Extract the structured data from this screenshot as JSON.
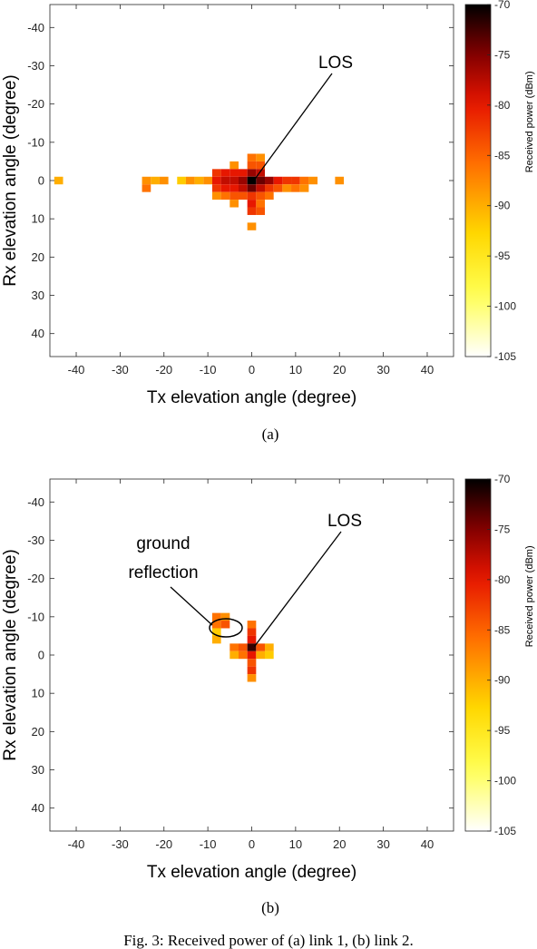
{
  "chart_data": [
    {
      "type": "heatmap",
      "subcaption": "(a)",
      "xlabel": "Tx elevation angle (degree)",
      "ylabel": "Rx elevation angle (degree)",
      "xlim": [
        -46,
        46
      ],
      "ylim": [
        -46,
        46
      ],
      "xticks": [
        -40,
        -30,
        -20,
        -10,
        0,
        10,
        20,
        30,
        40
      ],
      "yticks": [
        -40,
        -30,
        -20,
        -10,
        0,
        10,
        20,
        30,
        40
      ],
      "colorbar": {
        "label": "Received power (dBm)",
        "range": [
          -105,
          -70
        ],
        "ticks": [
          -70,
          -75,
          -80,
          -85,
          -90,
          -95,
          -100,
          -105
        ]
      },
      "cell_size_deg": 2,
      "annotations": [
        {
          "text": "LOS",
          "target": [
            0,
            0
          ]
        }
      ],
      "cells": [
        [
          -44,
          0,
          -90
        ],
        [
          -24,
          0,
          -88
        ],
        [
          -24,
          2,
          -86
        ],
        [
          -22,
          0,
          -90
        ],
        [
          -20,
          0,
          -88
        ],
        [
          -16,
          0,
          -92
        ],
        [
          -14,
          0,
          -88
        ],
        [
          -12,
          0,
          -90
        ],
        [
          -10,
          0,
          -88
        ],
        [
          -8,
          -2,
          -82
        ],
        [
          -8,
          0,
          -80
        ],
        [
          -8,
          2,
          -82
        ],
        [
          -8,
          4,
          -88
        ],
        [
          -6,
          -2,
          -80
        ],
        [
          -6,
          0,
          -78
        ],
        [
          -6,
          2,
          -80
        ],
        [
          -6,
          4,
          -86
        ],
        [
          -4,
          -4,
          -88
        ],
        [
          -4,
          -2,
          -80
        ],
        [
          -4,
          0,
          -78
        ],
        [
          -4,
          2,
          -80
        ],
        [
          -4,
          4,
          -84
        ],
        [
          -4,
          6,
          -88
        ],
        [
          -2,
          -2,
          -80
        ],
        [
          -2,
          0,
          -76
        ],
        [
          -2,
          2,
          -78
        ],
        [
          -2,
          4,
          -84
        ],
        [
          0,
          -6,
          -86
        ],
        [
          0,
          -4,
          -84
        ],
        [
          0,
          -2,
          -76
        ],
        [
          0,
          0,
          -70
        ],
        [
          0,
          2,
          -74
        ],
        [
          0,
          4,
          -82
        ],
        [
          0,
          6,
          -80
        ],
        [
          0,
          8,
          -82
        ],
        [
          0,
          12,
          -88
        ],
        [
          2,
          -6,
          -88
        ],
        [
          2,
          -4,
          -84
        ],
        [
          2,
          -2,
          -78
        ],
        [
          2,
          0,
          -74
        ],
        [
          2,
          2,
          -78
        ],
        [
          2,
          4,
          -84
        ],
        [
          2,
          6,
          -86
        ],
        [
          2,
          8,
          -84
        ],
        [
          4,
          0,
          -76
        ],
        [
          4,
          2,
          -82
        ],
        [
          4,
          4,
          -86
        ],
        [
          6,
          0,
          -80
        ],
        [
          6,
          2,
          -84
        ],
        [
          8,
          0,
          -82
        ],
        [
          8,
          2,
          -88
        ],
        [
          10,
          0,
          -82
        ],
        [
          10,
          2,
          -86
        ],
        [
          12,
          0,
          -86
        ],
        [
          12,
          2,
          -88
        ],
        [
          14,
          0,
          -88
        ],
        [
          20,
          0,
          -88
        ]
      ]
    },
    {
      "type": "heatmap",
      "subcaption": "(b)",
      "xlabel": "Tx elevation angle (degree)",
      "ylabel": "Rx elevation angle (degree)",
      "xlim": [
        -46,
        46
      ],
      "ylim": [
        -46,
        46
      ],
      "xticks": [
        -40,
        -30,
        -20,
        -10,
        0,
        10,
        20,
        30,
        40
      ],
      "yticks": [
        -40,
        -30,
        -20,
        -10,
        0,
        10,
        20,
        30,
        40
      ],
      "colorbar": {
        "label": "Received power (dBm)",
        "range": [
          -105,
          -70
        ],
        "ticks": [
          -70,
          -75,
          -80,
          -85,
          -90,
          -95,
          -100,
          -105
        ]
      },
      "cell_size_deg": 2,
      "annotations": [
        {
          "text": "LOS",
          "target": [
            0,
            -2
          ]
        },
        {
          "text": "ground reflection",
          "target": [
            -7,
            -9
          ]
        }
      ],
      "cells": [
        [
          -8,
          -10,
          -86
        ],
        [
          -8,
          -8,
          -86
        ],
        [
          -6,
          -10,
          -88
        ],
        [
          -6,
          -8,
          -84
        ],
        [
          -8,
          -6,
          -92
        ],
        [
          -8,
          -4,
          -90
        ],
        [
          -4,
          -2,
          -86
        ],
        [
          -4,
          0,
          -90
        ],
        [
          -2,
          -2,
          -84
        ],
        [
          -2,
          0,
          -86
        ],
        [
          0,
          -8,
          -86
        ],
        [
          0,
          -6,
          -82
        ],
        [
          0,
          -4,
          -80
        ],
        [
          0,
          -2,
          -72
        ],
        [
          0,
          0,
          -80
        ],
        [
          0,
          2,
          -84
        ],
        [
          0,
          4,
          -82
        ],
        [
          0,
          6,
          -88
        ],
        [
          2,
          -2,
          -84
        ],
        [
          2,
          0,
          -90
        ],
        [
          4,
          -2,
          -90
        ],
        [
          4,
          0,
          -92
        ]
      ]
    }
  ],
  "figure": {
    "caption": "Fig. 3: Received power of (a) link 1, (b) link 2."
  }
}
